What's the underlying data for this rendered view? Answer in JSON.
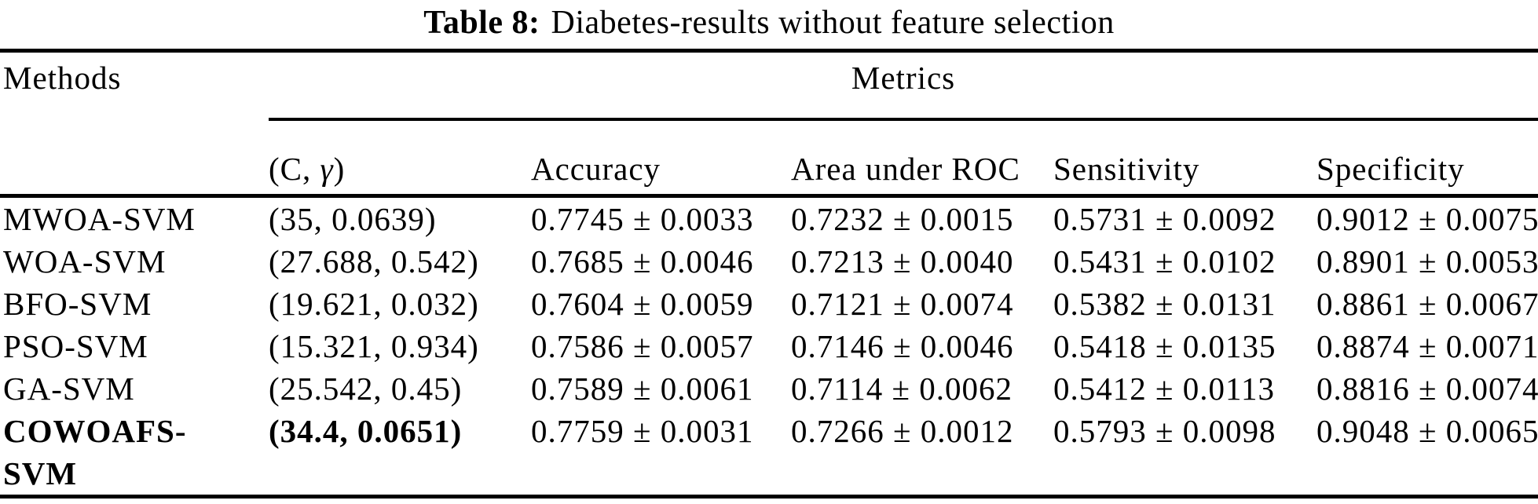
{
  "title": {
    "label": "Table 8:",
    "caption": "Diabetes-results without feature selection"
  },
  "colors": {
    "text": "#000000",
    "background": "#ffffff",
    "rule": "#000000"
  },
  "table": {
    "group_headers": {
      "methods": "Methods",
      "metrics": "Metrics"
    },
    "columns": {
      "cgamma": {
        "prefix": "(C, ",
        "gamma": "γ",
        "suffix": ")"
      },
      "accuracy": "Accuracy",
      "auroc": "Area under ROC",
      "sensitivity": "Sensitivity",
      "specificity": "Specificity"
    },
    "rows": [
      {
        "method": "MWOA-SVM",
        "c_gamma": "(35, 0.0639)",
        "accuracy": "0.7745 ± 0.0033",
        "auroc": "0.7232 ± 0.0015",
        "sensitivity": "0.5731 ± 0.0092",
        "specificity": "0.9012 ± 0.0075",
        "bold": false
      },
      {
        "method": "WOA-SVM",
        "c_gamma": "(27.688, 0.542)",
        "accuracy": "0.7685 ± 0.0046",
        "auroc": "0.7213 ± 0.0040",
        "sensitivity": "0.5431 ± 0.0102",
        "specificity": "0.8901 ± 0.0053",
        "bold": false
      },
      {
        "method": "BFO-SVM",
        "c_gamma": "(19.621, 0.032)",
        "accuracy": "0.7604 ± 0.0059",
        "auroc": "0.7121 ± 0.0074",
        "sensitivity": "0.5382 ± 0.0131",
        "specificity": "0.8861 ± 0.0067",
        "bold": false
      },
      {
        "method": "PSO-SVM",
        "c_gamma": "(15.321, 0.934)",
        "accuracy": "0.7586 ± 0.0057",
        "auroc": "0.7146 ± 0.0046",
        "sensitivity": "0.5418 ± 0.0135",
        "specificity": "0.8874 ± 0.0071",
        "bold": false
      },
      {
        "method": "GA-SVM",
        "c_gamma": "(25.542, 0.45)",
        "accuracy": "0.7589 ± 0.0061",
        "auroc": "0.7114 ± 0.0062",
        "sensitivity": "0.5412 ± 0.0113",
        "specificity": "0.8816 ± 0.0074",
        "bold": false
      },
      {
        "method": "COWOAFS-SVM",
        "c_gamma": "(34.4, 0.0651)",
        "accuracy": "0.7759 ± 0.0031",
        "auroc": "0.7266 ± 0.0012",
        "sensitivity": "0.5793 ± 0.0098",
        "specificity": "0.9048 ± 0.0065",
        "bold": true
      }
    ]
  }
}
